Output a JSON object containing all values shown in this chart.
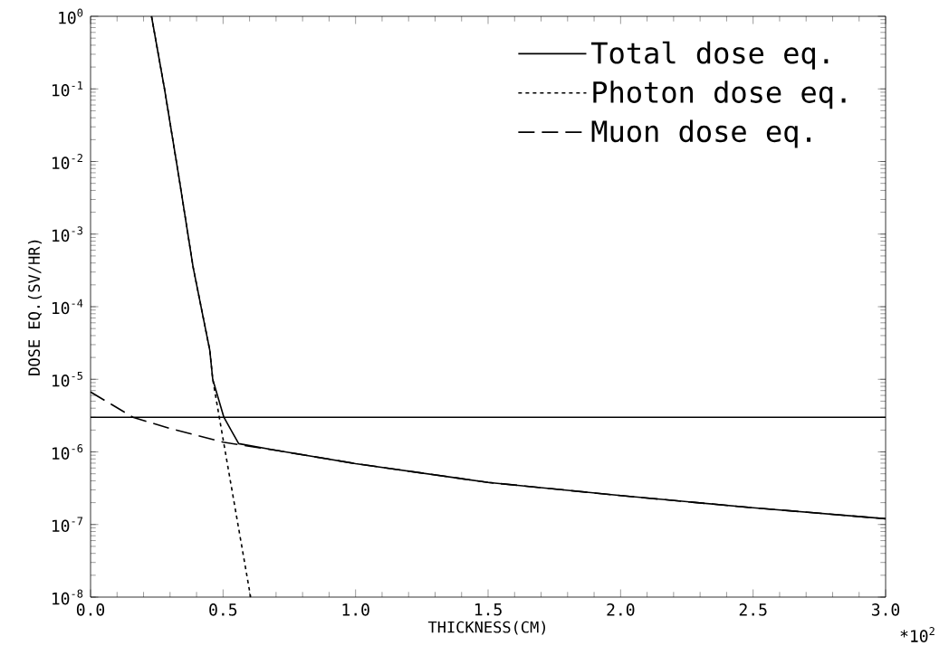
{
  "chart_data": {
    "type": "line",
    "xlabel": "THICKNESS(CM)",
    "ylabel": "DOSE EQ.(SV/HR)",
    "annotations": [
      "*10$^{2}$"
    ],
    "log": "y",
    "grid": false,
    "legend": "top right",
    "xlim": [
      0,
      3.0
    ],
    "ylim": [
      1e-08,
      1
    ],
    "xticks": [
      {
        "value": 0,
        "label": "0.0"
      },
      {
        "value": 0.5,
        "label": "0.5"
      },
      {
        "value": 1.0,
        "label": "1.0"
      },
      {
        "value": 1.5,
        "label": "1.5"
      },
      {
        "value": 2.0,
        "label": "2.0"
      },
      {
        "value": 2.5,
        "label": "2.5"
      },
      {
        "value": 3.0,
        "label": "3.0"
      }
    ],
    "yticks": [
      {
        "value": 1e-08,
        "label": "10$^{-8}$"
      },
      {
        "value": 1e-07,
        "label": "10$^{-7}$"
      },
      {
        "value": 1e-06,
        "label": "10$^{-6}$"
      },
      {
        "value": 1e-05,
        "label": "10$^{-5}$"
      },
      {
        "value": 0.0001,
        "label": "10$^{-4}$"
      },
      {
        "value": 0.001,
        "label": "10$^{-3}$"
      },
      {
        "value": 0.01,
        "label": "10$^{-2}$"
      },
      {
        "value": 0.1,
        "label": "10$^{-1}$"
      },
      {
        "value": 1,
        "label": "10$^{0}$"
      }
    ],
    "ref_lines": [
      {
        "axis": "y",
        "value": 3e-06,
        "color": "#000000",
        "line_style": "solid"
      }
    ],
    "series": [
      {
        "name": "Total dose eq.",
        "color": "#000000",
        "line_style": "solid",
        "x": [
          0.23,
          0.279,
          0.334,
          0.387,
          0.45,
          0.461,
          0.503,
          0.559,
          0.7,
          1.0,
          1.5,
          2.0,
          2.5,
          3.0
        ],
        "values": [
          1,
          0.1,
          0.0059,
          0.00035,
          2.5e-05,
          1e-05,
          3e-06,
          1.3e-06,
          1.05e-06,
          6.9e-07,
          3.8e-07,
          2.5e-07,
          1.7e-07,
          1.2e-07
        ]
      },
      {
        "name": "Photon dose eq.",
        "color": "#000000",
        "line_style": "dotted",
        "x": [
          0.23,
          0.279,
          0.334,
          0.387,
          0.45,
          0.461,
          0.5,
          0.55,
          0.604
        ],
        "values": [
          1,
          0.1,
          0.0059,
          0.00035,
          2.5e-05,
          1e-05,
          1.5e-06,
          1.35e-07,
          1e-08
        ]
      },
      {
        "name": "Muon dose eq.",
        "color": "#000000",
        "line_style": "dashed",
        "x": [
          0,
          0.16,
          0.3,
          0.5,
          0.7,
          1.0,
          1.5,
          2.0,
          2.5,
          3.0
        ],
        "values": [
          6.7e-06,
          3e-06,
          2.1e-06,
          1.36e-06,
          1.05e-06,
          6.9e-07,
          3.8e-07,
          2.5e-07,
          1.7e-07,
          1.2e-07
        ]
      }
    ]
  }
}
